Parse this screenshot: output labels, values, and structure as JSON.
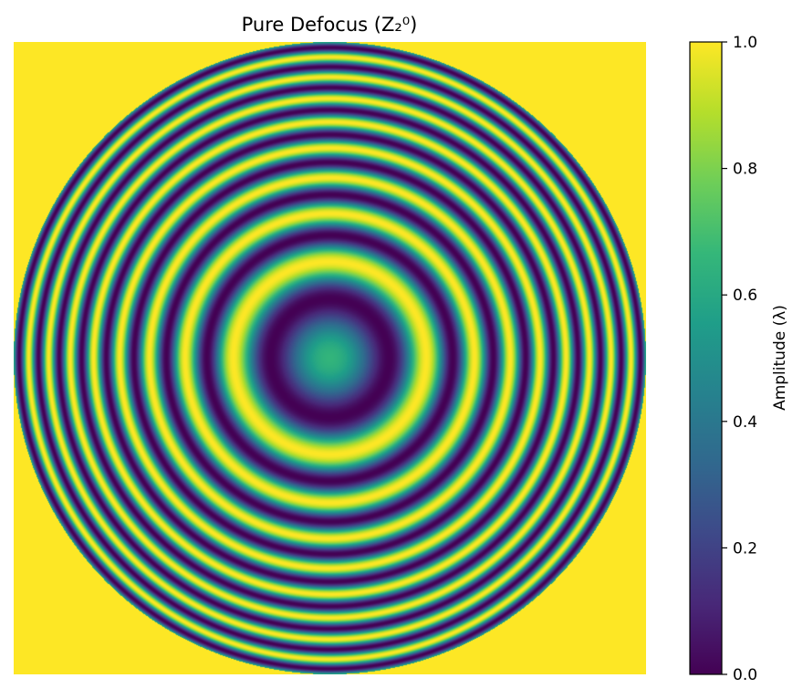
{
  "chart_data": {
    "type": "heatmap",
    "title": "Pure Defocus (Z₂⁰)",
    "description_of_data": "Amplitude of defocus fringes over a circular pupil; value = 0.5*(1 - cos(2*pi*W)), W = 4.3*(2*r^2 - 1)",
    "pupil": {
      "shape": "circle",
      "outside_value": 1.0
    },
    "defocus_waves": 4.3,
    "colormap": "viridis",
    "colormap_stops": [
      "#440154",
      "#482878",
      "#3e4989",
      "#31688e",
      "#26828e",
      "#1f9e89",
      "#35b779",
      "#6ece58",
      "#b5de2b",
      "#fde725"
    ],
    "colorbar": {
      "label": "Amplitude (λ)",
      "range": [
        0.0,
        1.0
      ],
      "ticks": [
        {
          "value": 0.0,
          "label": "0.0"
        },
        {
          "value": 0.2,
          "label": "0.2"
        },
        {
          "value": 0.4,
          "label": "0.4"
        },
        {
          "value": 0.6,
          "label": "0.6"
        },
        {
          "value": 0.8,
          "label": "0.8"
        },
        {
          "value": 1.0,
          "label": "1.0"
        }
      ]
    },
    "axes_visible": false
  }
}
